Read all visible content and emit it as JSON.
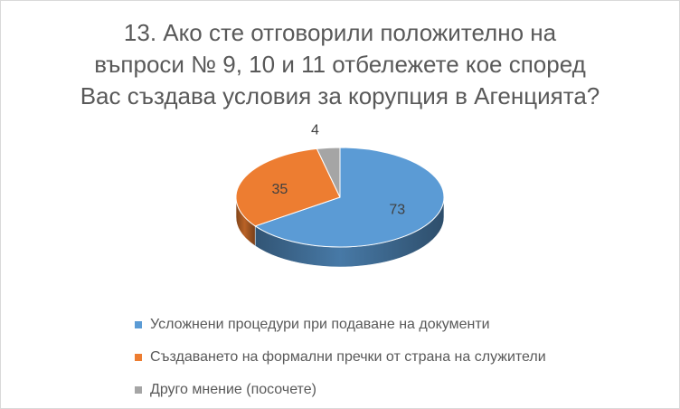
{
  "chart_data": {
    "type": "pie",
    "style": "3d",
    "title_lines": [
      "13. Ако сте отговорили положително на",
      "въпроси № 9, 10 и 11 отбележете кое според",
      "Вас създава условия за корупция в Агенцията?"
    ],
    "categories": [
      "Усложнени процедури при подаване на документи",
      "Създаването на формални пречки от страна на служители",
      "Друго мнение (посочете)"
    ],
    "values": [
      73,
      35,
      4
    ],
    "data_labels": [
      "73",
      "35",
      "4"
    ],
    "colors": [
      "#5B9BD5",
      "#ED7D31",
      "#A5A5A5"
    ],
    "legend_position": "bottom"
  }
}
